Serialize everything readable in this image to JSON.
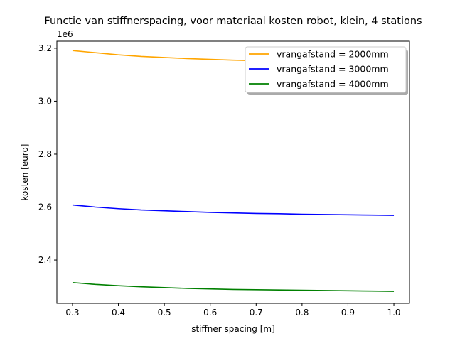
{
  "chart_data": {
    "type": "line",
    "title": "Functie van stiffnerspacing, voor materiaal kosten robot, klein, 4 stations",
    "xlabel": "stiffner spacing [m]",
    "ylabel": "kosten [euro]",
    "y_offset_label": "1e6",
    "xlim": [
      0.266,
      1.034
    ],
    "ylim": [
      2.2365,
      3.2265
    ],
    "x_ticks": [
      0.3,
      0.4,
      0.5,
      0.6,
      0.7,
      0.8,
      0.9,
      1.0
    ],
    "x_tick_labels": [
      "0.3",
      "0.4",
      "0.5",
      "0.6",
      "0.7",
      "0.8",
      "0.9",
      "1.0"
    ],
    "y_ticks": [
      2.4,
      2.6,
      2.8,
      3.0,
      3.2
    ],
    "y_tick_labels": [
      "2.4",
      "2.6",
      "2.8",
      "3.0",
      "3.2"
    ],
    "legend_position": "top-right",
    "grid": false,
    "x": [
      0.3,
      0.35,
      0.4,
      0.45,
      0.5,
      0.55,
      0.6,
      0.65,
      0.7,
      0.75,
      0.8,
      0.85,
      0.9,
      0.95,
      1.0
    ],
    "series": [
      {
        "name": "vrangafstand = 2000mm",
        "color": "#FFA500",
        "values": [
          3.191,
          3.183,
          3.175,
          3.169,
          3.165,
          3.161,
          3.158,
          3.155,
          3.153,
          3.151,
          3.149,
          3.147,
          3.146,
          3.145,
          3.144
        ]
      },
      {
        "name": "vrangafstand = 3000mm",
        "color": "#0000FF",
        "values": [
          2.608,
          2.6,
          2.594,
          2.589,
          2.586,
          2.583,
          2.58,
          2.578,
          2.576,
          2.575,
          2.573,
          2.572,
          2.571,
          2.57,
          2.569
        ]
      },
      {
        "name": "vrangafstand = 4000mm",
        "color": "#008000",
        "values": [
          2.315,
          2.308,
          2.303,
          2.299,
          2.296,
          2.293,
          2.291,
          2.289,
          2.288,
          2.287,
          2.286,
          2.285,
          2.284,
          2.283,
          2.282
        ]
      }
    ]
  }
}
